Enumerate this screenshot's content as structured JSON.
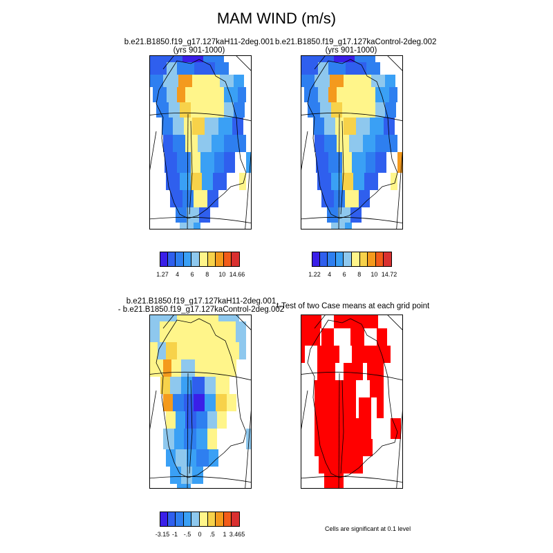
{
  "title": "MAM WIND (m/s)",
  "panels": [
    {
      "title_line1": "b.e21.B1850.f19_g17.127kaH11-2deg.001",
      "title_line2": "(yrs 901-1000)"
    },
    {
      "title_line1": "b.e21.B1850.f19_g17.127kaControl-2deg.002",
      "title_line2": "(yrs 901-1000)"
    },
    {
      "title_line1": "b.e21.B1850.f19_g17.127kaH11-2deg.001",
      "title_line2": "- b.e21.B1850.f19_g17.127kaControl-2deg.002"
    },
    {
      "title_line1": "t-Test of two Case means at each grid point",
      "title_line2": ""
    }
  ],
  "colorbars": [
    {
      "labels": [
        "1.27",
        "4",
        "6",
        "8",
        "10",
        "14.66"
      ],
      "colors": [
        "#3a1fe8",
        "#2f5fee",
        "#2e7ff0",
        "#3aa0f5",
        "#8ec8ee",
        "#fff58a",
        "#f7d24a",
        "#f49a1d",
        "#f25c1a",
        "#d93030"
      ]
    },
    {
      "labels": [
        "1.22",
        "4",
        "6",
        "8",
        "10",
        "14.72"
      ],
      "colors": [
        "#3a1fe8",
        "#2f5fee",
        "#2e7ff0",
        "#3aa0f5",
        "#8ec8ee",
        "#fff58a",
        "#f7d24a",
        "#f49a1d",
        "#f25c1a",
        "#d93030"
      ]
    },
    {
      "labels": [
        "-3.15",
        "-1",
        "-.5",
        "0",
        ".5",
        "1",
        "3.465"
      ],
      "colors": [
        "#3a1fe8",
        "#2f5fee",
        "#2e7ff0",
        "#3aa0f5",
        "#8ec8ee",
        "#fff58a",
        "#f7d24a",
        "#f49a1d",
        "#f25c1a",
        "#d93030"
      ]
    }
  ],
  "significance_note": "Cells are significant at 0.1 level",
  "colors": {
    "significant": "#ff0000",
    "coast": "#000000"
  }
}
